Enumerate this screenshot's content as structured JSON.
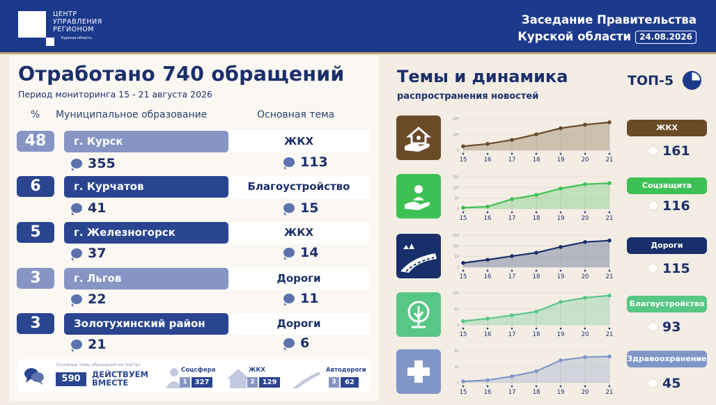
{
  "header": {
    "logo_lines": [
      "ЦЕНТР",
      "УПРАВЛЕНИЯ",
      "РЕГИОНОМ"
    ],
    "logo_sub": "Курская область",
    "title_line1": "Заседание Правительства",
    "title_line2": "Курской области",
    "date": "24.08.2026",
    "brand_color": "#1c3a8c"
  },
  "left": {
    "title": "Отработано 740 обращений",
    "period": "Период мониторинга 15 - 21 августа 2026",
    "col_pct": "%",
    "col_muni": "Муниципальное образование",
    "col_theme": "Основная тема",
    "rows": [
      {
        "pct": "48",
        "muni": "г. Курск",
        "muni_count": "355",
        "theme": "ЖКХ",
        "theme_count": "113"
      },
      {
        "pct": "6",
        "muni": "г. Курчатов",
        "muni_count": "41",
        "theme": "Благоустройство",
        "theme_count": "15"
      },
      {
        "pct": "5",
        "muni": "г. Железногорск",
        "muni_count": "37",
        "theme": "ЖКХ",
        "theme_count": "14"
      },
      {
        "pct": "3",
        "muni": "г. Льгов",
        "muni_count": "22",
        "theme": "Дороги",
        "theme_count": "11"
      },
      {
        "pct": "3",
        "muni": "Золотухинский район",
        "muni_count": "21",
        "theme": "Дороги",
        "theme_count": "6"
      }
    ],
    "bottom": {
      "caption": "Основные темы обращений на портал",
      "total": "590",
      "brand_l1": "ДЕЙСТВУЕМ",
      "brand_l2": "ВМЕСТЕ",
      "items": [
        {
          "label": "Соцсфера",
          "rank": "1",
          "count": "327"
        },
        {
          "label": "ЖКХ",
          "rank": "2",
          "count": "129"
        },
        {
          "label": "Автодороги",
          "rank": "3",
          "count": "62"
        }
      ]
    }
  },
  "right": {
    "title": "Темы и динамика",
    "subtitle": "распространения новостей",
    "top_label": "ТОП-5",
    "topics": [
      {
        "name": "ЖКХ",
        "count": "161",
        "color": "#6b4a28",
        "icon": "house-hand-icon"
      },
      {
        "name": "Соцзащита",
        "count": "116",
        "color": "#3ec154",
        "icon": "person-hand-icon"
      },
      {
        "name": "Дороги",
        "count": "115",
        "color": "#172f6b",
        "icon": "road-icon"
      },
      {
        "name": "Благоустройство",
        "count": "93",
        "color": "#57c785",
        "icon": "tree-icon"
      },
      {
        "name": "Здравоохранение",
        "count": "45",
        "color": "#7f96c7",
        "icon": "medical-cross-icon"
      }
    ]
  },
  "chart_data": [
    {
      "type": "area",
      "title": "ЖКХ",
      "x": [
        15,
        16,
        17,
        18,
        19,
        20,
        21
      ],
      "values": [
        25,
        40,
        65,
        100,
        138,
        160,
        175
      ],
      "ytick_labels": [
        "0",
        "100",
        "200"
      ],
      "ylim": [
        0,
        200
      ],
      "color": "#6b4a28"
    },
    {
      "type": "area",
      "title": "Соцзащита",
      "x": [
        15,
        16,
        17,
        18,
        19,
        20,
        21
      ],
      "values": [
        5,
        10,
        45,
        65,
        95,
        115,
        120
      ],
      "ytick_labels": [
        "0",
        "50",
        "100",
        "150"
      ],
      "ylim": [
        0,
        150
      ],
      "color": "#3ec154"
    },
    {
      "type": "area",
      "title": "Дороги",
      "x": [
        15,
        16,
        17,
        18,
        19,
        20,
        21
      ],
      "values": [
        20,
        35,
        52,
        68,
        95,
        118,
        125
      ],
      "ytick_labels": [
        "0",
        "50",
        "100",
        "150"
      ],
      "ylim": [
        0,
        150
      ],
      "color": "#172f6b"
    },
    {
      "type": "area",
      "title": "Благоустройство",
      "x": [
        15,
        16,
        17,
        18,
        19,
        20,
        21
      ],
      "values": [
        12,
        20,
        30,
        42,
        72,
        85,
        92
      ],
      "ytick_labels": [
        "0",
        "50",
        "100"
      ],
      "ylim": [
        0,
        100
      ],
      "color": "#57c785"
    },
    {
      "type": "area",
      "title": "Здравоохранение",
      "x": [
        15,
        16,
        17,
        18,
        19,
        20,
        21
      ],
      "values": [
        2,
        4,
        10,
        18,
        35,
        40,
        41
      ],
      "ytick_labels": [
        "0",
        "25",
        "50"
      ],
      "ylim": [
        0,
        50
      ],
      "color": "#7f96c7"
    }
  ]
}
